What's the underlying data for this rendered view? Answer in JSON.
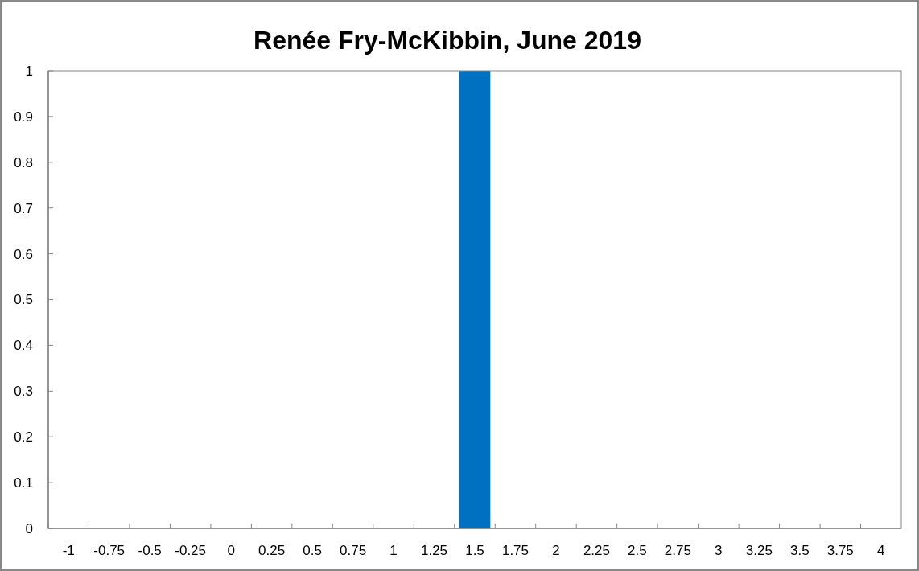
{
  "chart_data": {
    "type": "bar",
    "title": "Renée Fry-McKibbin, June 2019",
    "categories": [
      "-1",
      "-0.75",
      "-0.5",
      "-0.25",
      "0",
      "0.25",
      "0.5",
      "0.75",
      "1",
      "1.25",
      "1.5",
      "1.75",
      "2",
      "2.25",
      "2.5",
      "2.75",
      "3",
      "3.25",
      "3.5",
      "3.75",
      "4"
    ],
    "values": [
      0,
      0,
      0,
      0,
      0,
      0,
      0,
      0,
      0,
      0,
      1,
      0,
      0,
      0,
      0,
      0,
      0,
      0,
      0,
      0,
      0
    ],
    "color": "#0070c0",
    "ylim": [
      0,
      1
    ],
    "yticks": [
      0,
      0.1,
      0.2,
      0.3,
      0.4,
      0.5,
      0.6,
      0.7,
      0.8,
      0.9,
      1
    ]
  }
}
